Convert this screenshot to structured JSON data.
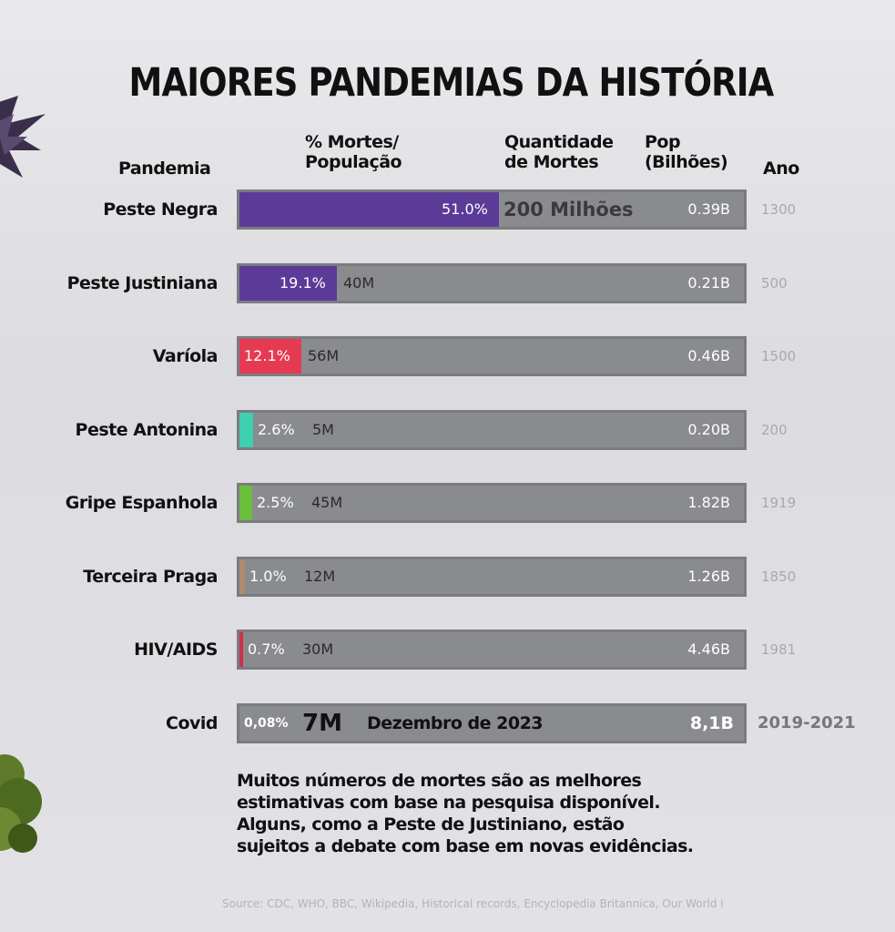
{
  "chart_data": {
    "type": "bar",
    "title": "MAIORES PANDEMIAS DA HISTÓRIA",
    "columns": {
      "pandemia": "Pandemia",
      "pct": [
        "% Mortes/",
        "População"
      ],
      "qtd": [
        "Quantidade",
        "de Mortes"
      ],
      "pop": [
        "Pop",
        "(Bilhões)"
      ],
      "ano": "Ano"
    },
    "categories": [
      "Peste Negra",
      "Peste Justiniana",
      "Varíola",
      "Peste Antonina",
      "Gripe Espanhola",
      "Terceira Praga",
      "HIV/AIDS",
      "Covid"
    ],
    "values": [
      51.0,
      19.1,
      12.1,
      2.6,
      2.5,
      1.0,
      0.7,
      0.08
    ],
    "rows": [
      {
        "name": "Peste Negra",
        "pct_label": "51.0%",
        "pct": 51.0,
        "deaths": "200 Milhões",
        "pop": "0.39B",
        "year": "1300",
        "color": "#5b3b97"
      },
      {
        "name": "Peste Justiniana",
        "pct_label": "19.1%",
        "pct": 19.1,
        "deaths": "40M",
        "pop": "0.21B",
        "year": "500",
        "color": "#5b3b97"
      },
      {
        "name": "Varíola",
        "pct_label": "12.1%",
        "pct": 12.1,
        "deaths": "56M",
        "pop": "0.46B",
        "year": "1500",
        "color": "#e63a52"
      },
      {
        "name": "Peste Antonina",
        "pct_label": "2.6%",
        "pct": 2.6,
        "deaths": "5M",
        "pop": "0.20B",
        "year": "200",
        "color": "#3fd0b0"
      },
      {
        "name": "Gripe Espanhola",
        "pct_label": "2.5%",
        "pct": 2.5,
        "deaths": "45M",
        "pop": "1.82B",
        "year": "1919",
        "color": "#6cbf3a"
      },
      {
        "name": "Terceira Praga",
        "pct_label": "1.0%",
        "pct": 1.0,
        "deaths": "12M",
        "pop": "1.26B",
        "year": "1850",
        "color": "#b08a6a"
      },
      {
        "name": "HIV/AIDS",
        "pct_label": "0.7%",
        "pct": 0.7,
        "deaths": "30M",
        "pop": "4.46B",
        "year": "1981",
        "color": "#d0304a"
      },
      {
        "name": "Covid",
        "pct_label": "0,08%",
        "pct": 0.08,
        "deaths": "7M",
        "note": "Dezembro de 2023",
        "pop": "8,1B",
        "year": "2019-2021",
        "color": "#9b9ca0"
      }
    ]
  },
  "footnote": [
    "Muitos números de mortes são as melhores",
    "estimativas com base na pesquisa disponível.",
    "Alguns, como a Peste de Justiniano, estão",
    "sujeitos a debate com base em novas evidências."
  ],
  "source": "Source: CDC, WHO, BBC, Wikipedia, Historical records, Encyclopedia Britannica, Our World i"
}
